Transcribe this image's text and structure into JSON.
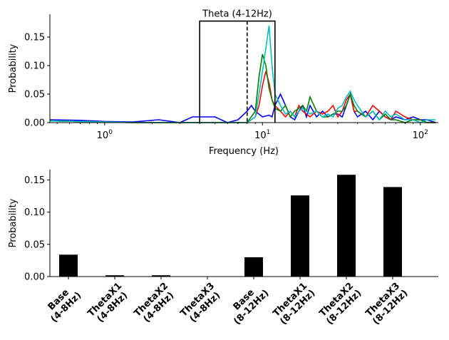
{
  "chart_data": [
    {
      "type": "line",
      "xscale": "log",
      "xlim": [
        0.45,
        130
      ],
      "ylim": [
        0,
        0.19
      ],
      "xlabel": "Frequency (Hz)",
      "ylabel": "Probability",
      "xticks": [
        {
          "value": 1,
          "label": "10^0"
        },
        {
          "value": 10,
          "label": "10^1"
        },
        {
          "value": 100,
          "label": "10^2"
        }
      ],
      "yticks": [
        {
          "value": 0.0,
          "label": "0.00"
        },
        {
          "value": 0.05,
          "label": "0.05"
        },
        {
          "value": 0.1,
          "label": "0.10"
        },
        {
          "value": 0.15,
          "label": "0.15"
        }
      ],
      "annotation": {
        "label": "Theta (4-12Hz)",
        "x0": 4,
        "x1": 12,
        "top": 0.178,
        "dashed_x": 8
      },
      "series": [
        {
          "color": "#0000ff",
          "x": [
            0.45,
            0.7,
            1.0,
            1.5,
            2.2,
            3.0,
            3.6,
            4.0,
            5.0,
            6.0,
            7.0,
            8.0,
            8.5,
            9.0,
            10.0,
            11.0,
            11.5,
            12.0,
            13.0,
            14.0,
            15.0,
            16.0,
            17.0,
            18.0,
            19.0,
            20.0,
            22.0,
            24.0,
            26.0,
            28.0,
            30.0,
            32.0,
            34.0,
            36.0,
            38.0,
            40.0,
            45.0,
            50.0,
            55.0,
            60.0,
            65.0,
            70.0,
            80.0,
            90.0,
            100.0,
            110.0,
            125.0
          ],
          "y": [
            0.005,
            0.004,
            0.002,
            0.001,
            0.005,
            0.0,
            0.01,
            0.01,
            0.01,
            0.0,
            0.005,
            0.02,
            0.03,
            0.02,
            0.01,
            0.013,
            0.01,
            0.03,
            0.05,
            0.03,
            0.01,
            0.005,
            0.02,
            0.03,
            0.01,
            0.03,
            0.01,
            0.02,
            0.01,
            0.015,
            0.015,
            0.01,
            0.03,
            0.05,
            0.02,
            0.01,
            0.02,
            0.005,
            0.02,
            0.01,
            0.005,
            0.01,
            0.005,
            0.01,
            0.005,
            0.005,
            0.0
          ]
        },
        {
          "color": "#ff0000",
          "x": [
            0.45,
            0.7,
            1.0,
            1.5,
            3.0,
            8.0,
            9.0,
            9.5,
            10.0,
            10.5,
            11.0,
            11.5,
            12.0,
            13.0,
            14.0,
            15.0,
            16.0,
            17.0,
            18.0,
            20.0,
            22.0,
            24.0,
            26.0,
            28.0,
            30.0,
            32.0,
            34.0,
            36.0,
            38.0,
            40.0,
            45.0,
            50.0,
            55.0,
            60.0,
            65.0,
            70.0,
            80.0,
            90.0,
            100.0,
            110.0,
            125.0
          ],
          "y": [
            0.003,
            0.002,
            0.001,
            0.0,
            0.0,
            0.0,
            0.01,
            0.03,
            0.065,
            0.09,
            0.07,
            0.04,
            0.03,
            0.02,
            0.01,
            0.02,
            0.01,
            0.03,
            0.02,
            0.01,
            0.02,
            0.015,
            0.02,
            0.03,
            0.01,
            0.02,
            0.04,
            0.05,
            0.02,
            0.02,
            0.01,
            0.03,
            0.02,
            0.01,
            0.005,
            0.02,
            0.01,
            0.005,
            0.005,
            0.0,
            0.0
          ]
        },
        {
          "color": "#008000",
          "x": [
            0.45,
            0.7,
            1.0,
            1.5,
            3.0,
            8.0,
            9.0,
            9.5,
            10.0,
            10.5,
            11.0,
            11.5,
            12.0,
            13.0,
            14.0,
            15.0,
            16.0,
            17.0,
            18.0,
            19.0,
            20.0,
            22.0,
            24.0,
            26.0,
            28.0,
            30.0,
            32.0,
            34.0,
            36.0,
            38.0,
            40.0,
            45.0,
            50.0,
            55.0,
            60.0,
            65.0,
            70.0,
            80.0,
            90.0,
            100.0,
            110.0,
            125.0
          ],
          "y": [
            0.003,
            0.002,
            0.001,
            0.0,
            0.0,
            0.0,
            0.02,
            0.08,
            0.12,
            0.1,
            0.06,
            0.04,
            0.025,
            0.02,
            0.03,
            0.01,
            0.02,
            0.025,
            0.03,
            0.02,
            0.045,
            0.02,
            0.01,
            0.01,
            0.015,
            0.02,
            0.02,
            0.03,
            0.05,
            0.03,
            0.02,
            0.01,
            0.02,
            0.005,
            0.015,
            0.005,
            0.005,
            0.0,
            0.005,
            0.005,
            0.0,
            0.0
          ]
        },
        {
          "color": "#00bfbf",
          "x": [
            0.45,
            0.7,
            1.0,
            1.5,
            3.0,
            8.0,
            9.0,
            9.5,
            10.0,
            10.5,
            11.0,
            11.5,
            12.0,
            13.0,
            14.0,
            15.0,
            16.0,
            17.0,
            18.0,
            20.0,
            22.0,
            24.0,
            26.0,
            28.0,
            30.0,
            32.0,
            34.0,
            36.0,
            38.0,
            40.0,
            45.0,
            50.0,
            55.0,
            60.0,
            65.0,
            70.0,
            80.0,
            90.0,
            100.0,
            110.0,
            125.0
          ],
          "y": [
            0.003,
            0.002,
            0.001,
            0.0,
            0.0,
            0.0,
            0.01,
            0.05,
            0.09,
            0.13,
            0.17,
            0.1,
            0.05,
            0.03,
            0.015,
            0.02,
            0.01,
            0.02,
            0.025,
            0.015,
            0.02,
            0.01,
            0.015,
            0.01,
            0.025,
            0.03,
            0.045,
            0.055,
            0.04,
            0.03,
            0.01,
            0.02,
            0.005,
            0.02,
            0.01,
            0.015,
            0.005,
            0.005,
            0.0,
            0.005,
            0.005
          ]
        }
      ]
    },
    {
      "type": "bar",
      "ylabel": "Probability",
      "ylim": [
        0,
        0.166
      ],
      "yticks": [
        {
          "value": 0.0,
          "label": "0.00"
        },
        {
          "value": 0.05,
          "label": "0.05"
        },
        {
          "value": 0.1,
          "label": "0.10"
        },
        {
          "value": 0.15,
          "label": "0.15"
        }
      ],
      "categories": [
        [
          "Base",
          "(4-8Hz)"
        ],
        [
          "ThetaX1",
          "(4-8Hz)"
        ],
        [
          "ThetaX2",
          "(4-8Hz)"
        ],
        [
          "ThetaX3",
          "(4-8Hz)"
        ],
        [
          "Base",
          "(8-12Hz)"
        ],
        [
          "ThetaX1",
          "(8-12Hz)"
        ],
        [
          "ThetaX2",
          "(8-12Hz)"
        ],
        [
          "ThetaX3",
          "(8-12Hz)"
        ]
      ],
      "values": [
        0.034,
        0.002,
        0.002,
        0.0,
        0.03,
        0.126,
        0.158,
        0.139
      ],
      "bar_color": "#000000"
    }
  ]
}
